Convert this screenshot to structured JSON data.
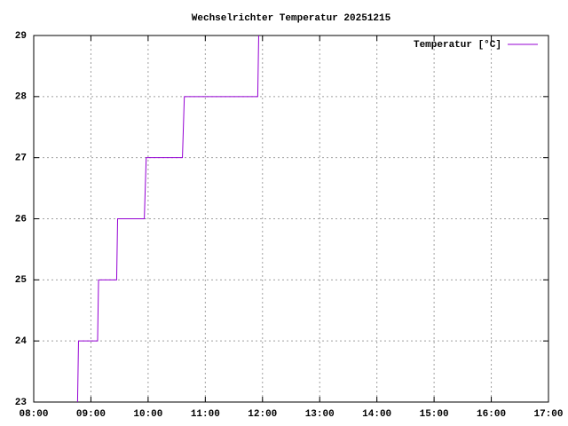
{
  "chart_data": {
    "type": "line",
    "title": "Wechselrichter Temperatur 20251215",
    "x": [
      "08:46",
      "08:47",
      "09:07",
      "09:08",
      "09:27",
      "09:28",
      "09:56",
      "09:58",
      "10:36",
      "10:38",
      "11:55",
      "11:56"
    ],
    "series": [
      {
        "name": "Temperatur [°C]",
        "color": "#9400d3",
        "values": [
          23,
          24,
          24,
          25,
          25,
          26,
          26,
          27,
          27,
          28,
          28,
          29
        ]
      }
    ],
    "xlim": [
      "08:00",
      "17:00"
    ],
    "xticks": [
      "08:00",
      "09:00",
      "10:00",
      "11:00",
      "12:00",
      "13:00",
      "14:00",
      "15:00",
      "16:00",
      "17:00"
    ],
    "ylim": [
      23,
      29
    ],
    "yticks": [
      23,
      24,
      25,
      26,
      27,
      28,
      29
    ],
    "grid": true,
    "legend": "top-right"
  }
}
